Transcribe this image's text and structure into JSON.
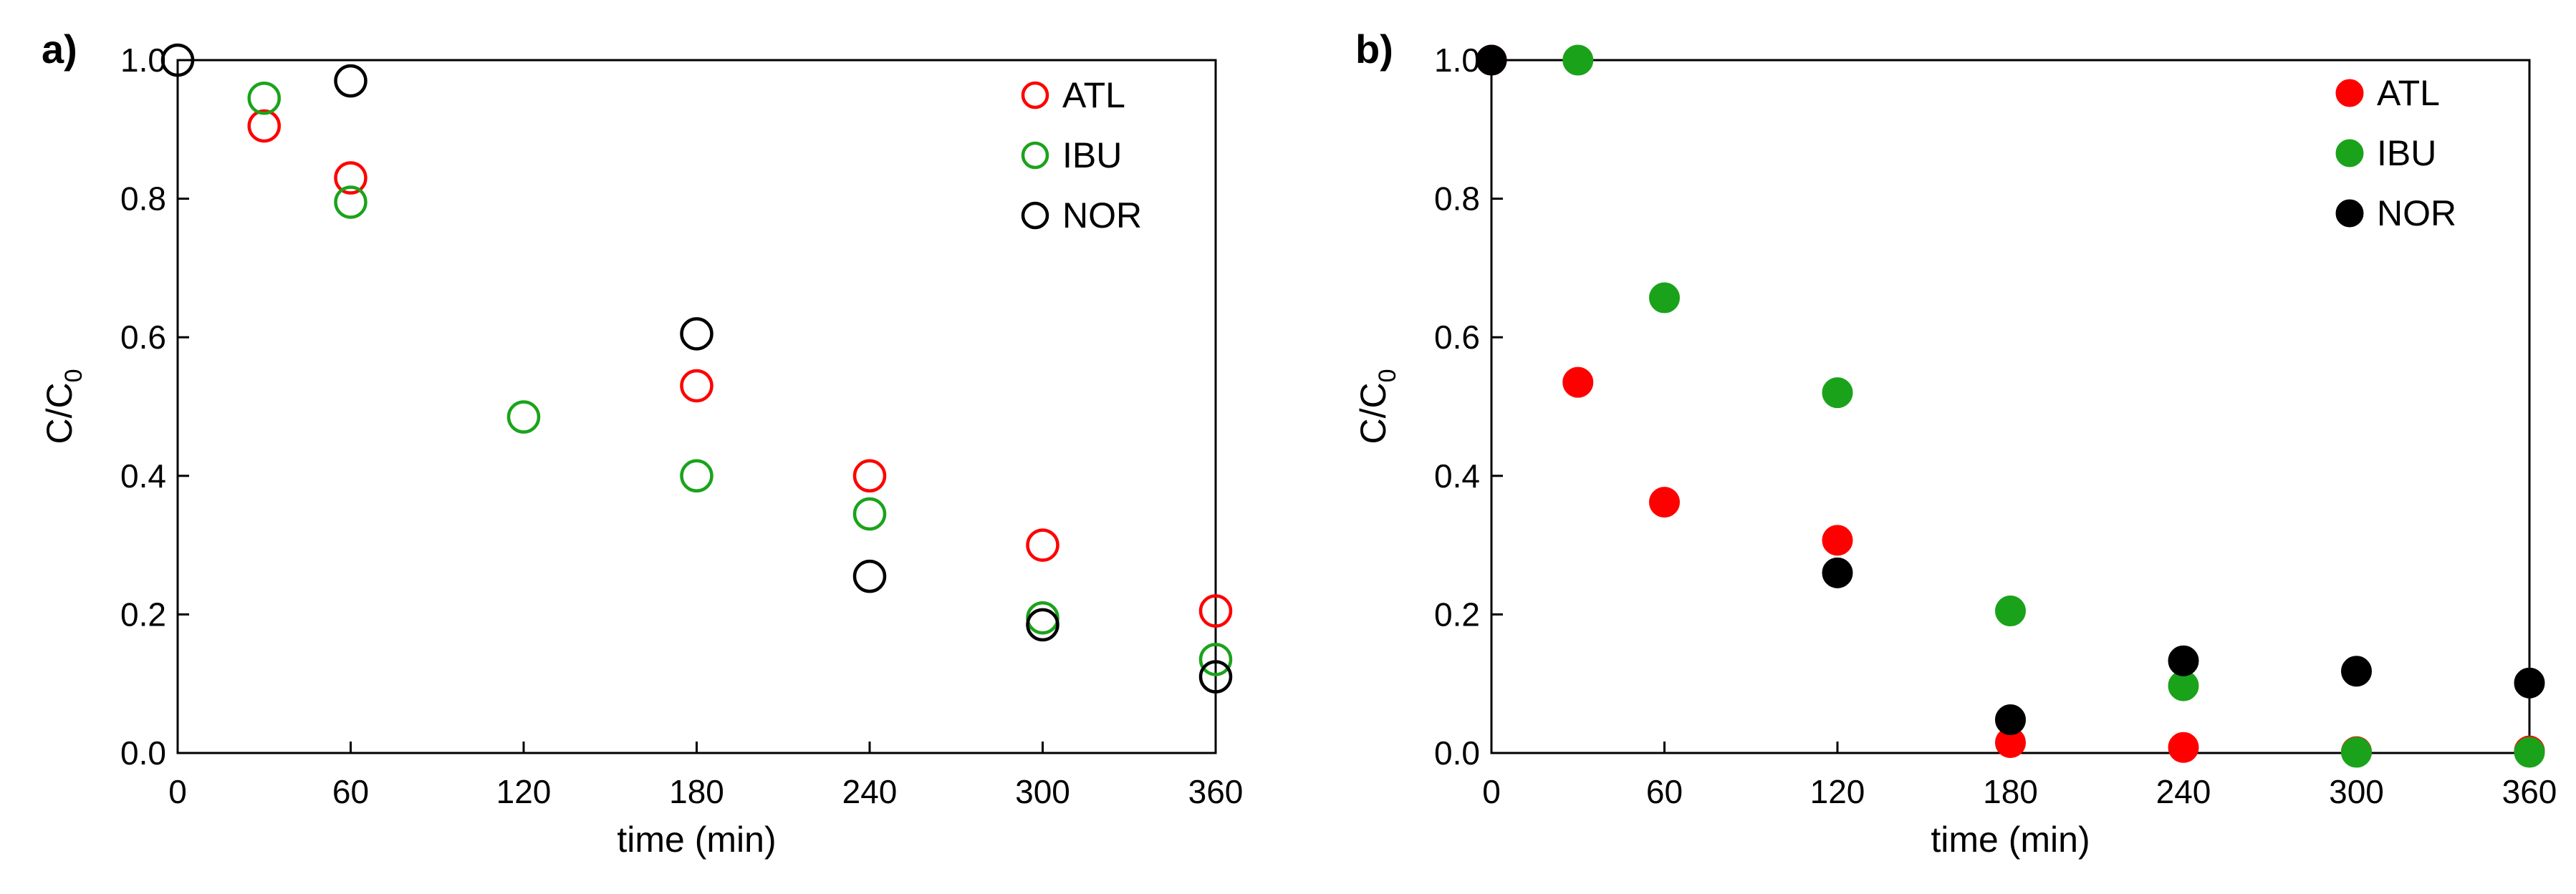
{
  "chart_data": [
    {
      "panel_label": "a)",
      "type": "scatter",
      "marker_style": "hollow",
      "xlabel": "time (min)",
      "ylabel": "C/C",
      "ylabel_subscript": "0",
      "xlim": [
        0,
        360
      ],
      "ylim": [
        0,
        1.0
      ],
      "x_ticks": [
        "0",
        "60",
        "120",
        "180",
        "240",
        "300",
        "360"
      ],
      "y_ticks": [
        "0.0",
        "0.2",
        "0.4",
        "0.6",
        "0.8",
        "1.0"
      ],
      "grid": false,
      "legend_position": "top-right",
      "series": [
        {
          "name": "ATL",
          "color": "#ff0000",
          "points": [
            [
              30,
              0.905
            ],
            [
              60,
              0.83
            ],
            [
              180,
              0.53
            ],
            [
              240,
              0.4
            ],
            [
              300,
              0.3
            ],
            [
              360,
              0.205
            ]
          ]
        },
        {
          "name": "IBU",
          "color": "#1aa31a",
          "points": [
            [
              30,
              0.945
            ],
            [
              60,
              0.795
            ],
            [
              120,
              0.485
            ],
            [
              180,
              0.4
            ],
            [
              240,
              0.345
            ],
            [
              300,
              0.195
            ],
            [
              360,
              0.135
            ]
          ]
        },
        {
          "name": "NOR",
          "color": "#000000",
          "points": [
            [
              0,
              1.0
            ],
            [
              60,
              0.97
            ],
            [
              180,
              0.605
            ],
            [
              240,
              0.255
            ],
            [
              300,
              0.185
            ],
            [
              360,
              0.11
            ]
          ]
        }
      ]
    },
    {
      "panel_label": "b)",
      "type": "scatter",
      "marker_style": "filled",
      "xlabel": "time (min)",
      "ylabel": "C/C",
      "ylabel_subscript": "0",
      "xlim": [
        0,
        360
      ],
      "ylim": [
        0,
        1.0
      ],
      "x_ticks": [
        "0",
        "60",
        "120",
        "180",
        "240",
        "300",
        "360"
      ],
      "y_ticks": [
        "0.0",
        "0.2",
        "0.4",
        "0.6",
        "0.8",
        "1.0"
      ],
      "grid": false,
      "legend_position": "top-right",
      "series": [
        {
          "name": "ATL",
          "color": "#ff0000",
          "points": [
            [
              0,
              1.0
            ],
            [
              30,
              0.535
            ],
            [
              60,
              0.362
            ],
            [
              120,
              0.307
            ],
            [
              180,
              0.015
            ],
            [
              240,
              0.008
            ],
            [
              300,
              0.002
            ],
            [
              360,
              0.003
            ]
          ]
        },
        {
          "name": "IBU",
          "color": "#1aa31a",
          "points": [
            [
              30,
              1.0
            ],
            [
              60,
              0.657
            ],
            [
              120,
              0.52
            ],
            [
              180,
              0.205
            ],
            [
              240,
              0.097
            ],
            [
              300,
              0.001
            ],
            [
              360,
              0.001
            ]
          ]
        },
        {
          "name": "NOR",
          "color": "#000000",
          "points": [
            [
              0,
              1.0
            ],
            [
              120,
              0.26
            ],
            [
              180,
              0.048
            ],
            [
              240,
              0.133
            ],
            [
              300,
              0.118
            ],
            [
              360,
              0.101
            ]
          ]
        }
      ]
    }
  ]
}
